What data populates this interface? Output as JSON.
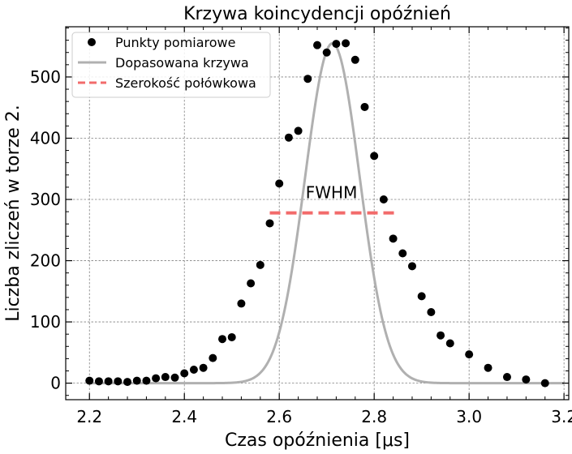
{
  "chart_data": {
    "type": "scatter",
    "title": "Krzywa koincydencji opóźnień",
    "xlabel": "Czas opóźnienia [μs]",
    "ylabel": "Liczba zliczeń w torze 2.",
    "xlim": [
      2.15,
      3.21
    ],
    "ylim": [
      -27,
      582
    ],
    "x_ticks": [
      2.2,
      2.4,
      2.6,
      2.8,
      3.0,
      3.2
    ],
    "y_ticks": [
      0,
      100,
      200,
      300,
      400,
      500
    ],
    "grid": true,
    "legend_position": "top-left",
    "series": [
      {
        "name": "Punkty pomiarowe",
        "type": "scatter",
        "color": "#000000",
        "x": [
          2.2,
          2.22,
          2.24,
          2.26,
          2.28,
          2.3,
          2.32,
          2.34,
          2.36,
          2.38,
          2.4,
          2.42,
          2.44,
          2.46,
          2.48,
          2.5,
          2.52,
          2.54,
          2.56,
          2.58,
          2.6,
          2.62,
          2.64,
          2.66,
          2.68,
          2.7,
          2.72,
          2.74,
          2.76,
          2.78,
          2.8,
          2.82,
          2.84,
          2.86,
          2.88,
          2.9,
          2.92,
          2.94,
          2.96,
          3.0,
          3.04,
          3.08,
          3.12,
          3.16
        ],
        "y": [
          4,
          3,
          3,
          3,
          2,
          4,
          4,
          8,
          10,
          9,
          16,
          22,
          25,
          41,
          72,
          75,
          130,
          163,
          193,
          261,
          326,
          401,
          412,
          497,
          552,
          540,
          554,
          555,
          528,
          451,
          371,
          300,
          236,
          212,
          191,
          142,
          116,
          78,
          65,
          47,
          25,
          10,
          6,
          0
        ]
      },
      {
        "name": "Dopasowana krzywa",
        "type": "line",
        "color": "#b0b0b0",
        "model": "gaussian",
        "amplitude": 555,
        "mean": 2.712,
        "sigma": 0.0575,
        "x_range": [
          2.2,
          3.2
        ]
      },
      {
        "name": "Szerokość połówkowa",
        "type": "line",
        "color": "#f26b6b",
        "dashed": true,
        "x": [
          2.58,
          2.845
        ],
        "y": [
          278,
          278
        ]
      }
    ],
    "annotations": [
      {
        "text": "FWHM",
        "x": 2.71,
        "y": 302
      }
    ]
  }
}
